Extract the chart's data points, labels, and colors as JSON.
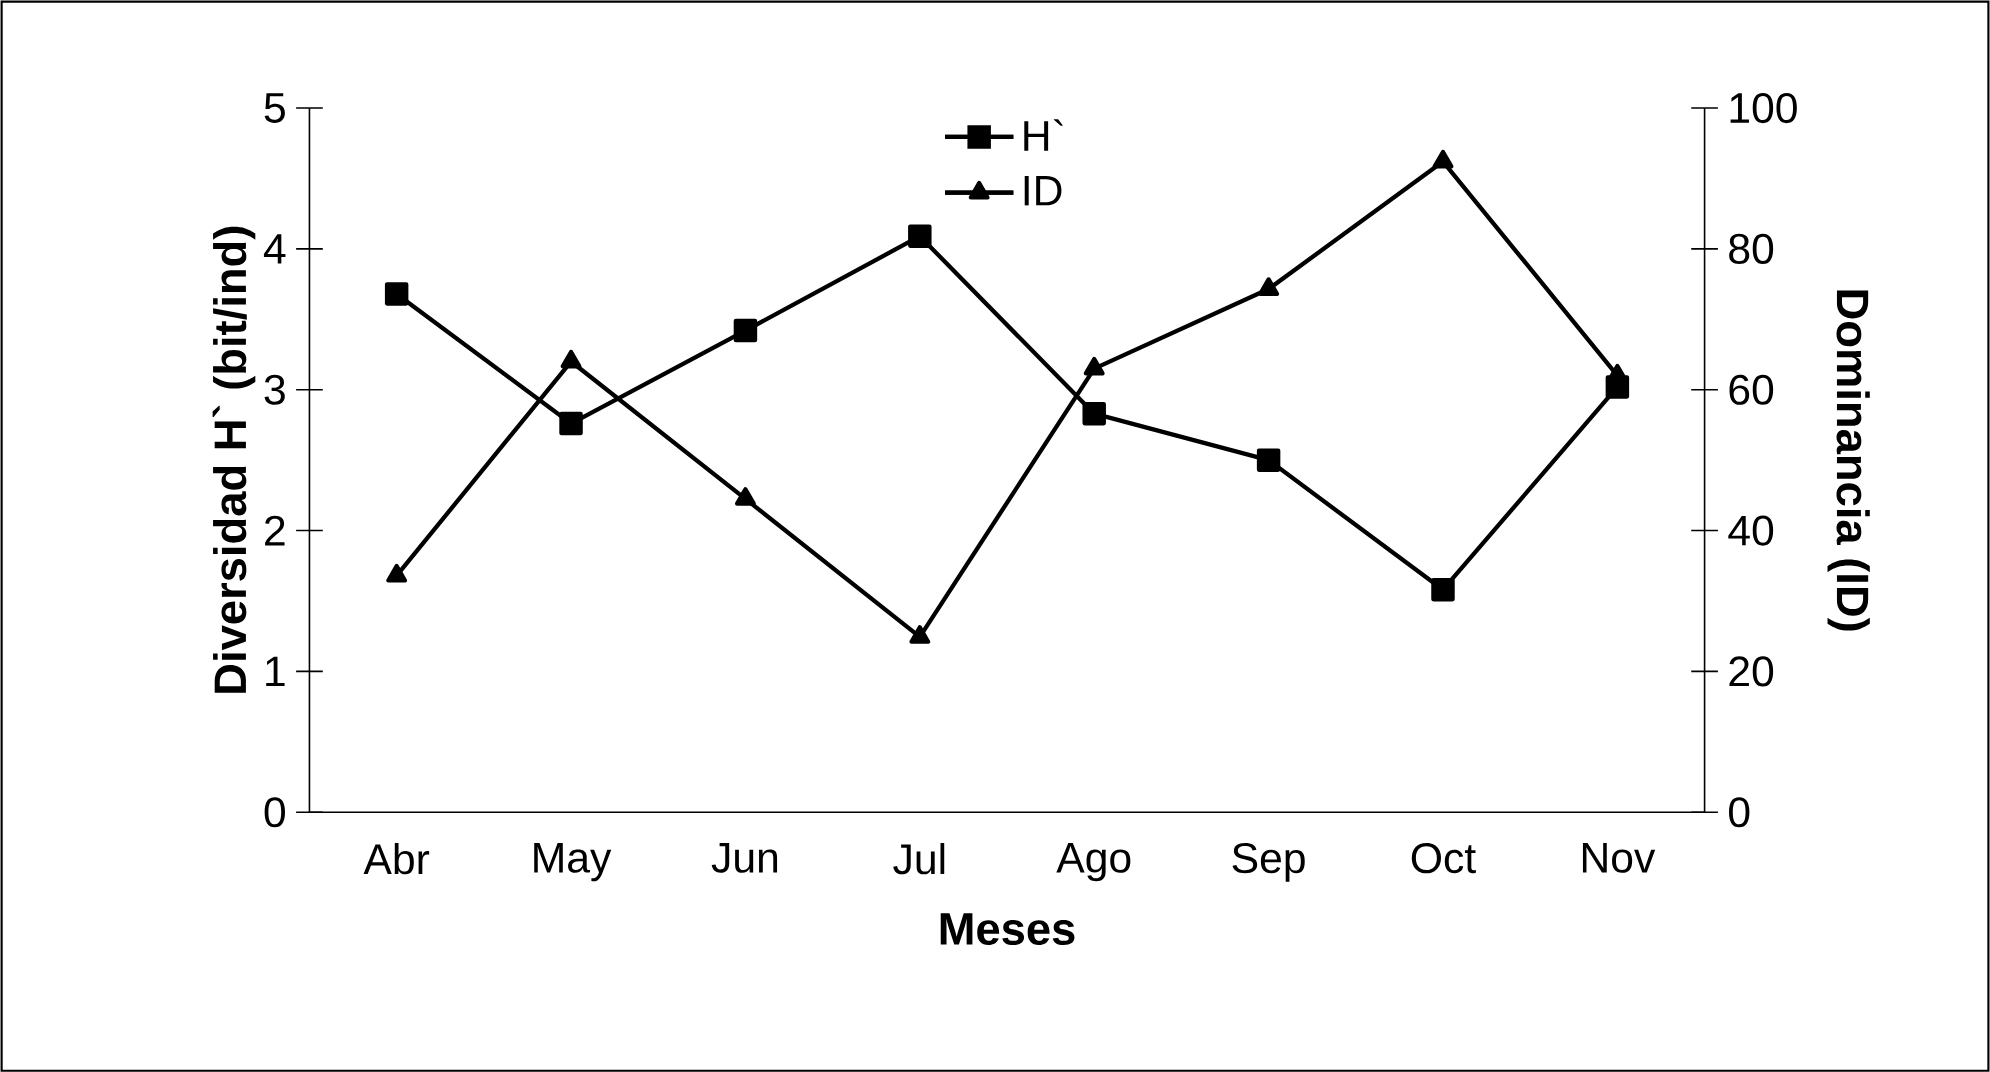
{
  "chart_data": {
    "type": "line",
    "xlabel": "Meses",
    "ylabel": "Diversidad H` (bit/ind)",
    "y2label": "Dominancia (ID)",
    "categories": [
      "Abr",
      "May",
      "Jun",
      "Jul",
      "Ago",
      "Sep",
      "Oct",
      "Nov"
    ],
    "series": [
      {
        "name": "H`",
        "color": "#000000",
        "marker": "square",
        "values": [
          3.68,
          2.76,
          3.42,
          4.09,
          2.83,
          2.5,
          1.58,
          3.02
        ]
      },
      {
        "name": "ID",
        "color": "#000000",
        "marker": "triangle",
        "axis": "y2",
        "values": [
          33.6,
          64,
          44.5,
          24.9,
          63,
          74.3,
          92.4,
          62
        ]
      }
    ],
    "ylim": [
      0,
      5
    ],
    "yticks": [
      0,
      1,
      2,
      3,
      4,
      5
    ],
    "y2lim": [
      0,
      100
    ],
    "y2ticks": [
      0,
      20,
      40,
      60,
      80,
      100
    ],
    "legend": "top",
    "grid": false,
    "line_style": "solid"
  }
}
